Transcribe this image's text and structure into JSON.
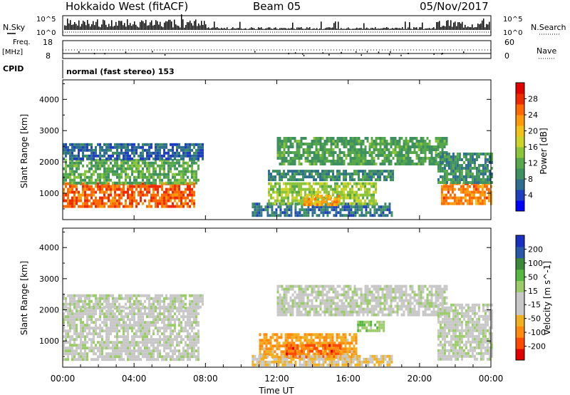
{
  "header": {
    "station": "Hokkaido West (fitACF)",
    "beam": "Beam 05",
    "date": "05/Nov/2017"
  },
  "status_panel": {
    "nsky_label": "N.Sky",
    "nsearch_label": "N.Search",
    "noise_ticks": [
      "10^5",
      "10^0"
    ],
    "freq_label_1": "Freq.",
    "freq_label_2": "[MHz]",
    "freq_ticks": [
      "18",
      "8"
    ],
    "nave_label": "Nave",
    "nave_ticks": [
      "60",
      "0"
    ],
    "cpid_label": "CPID",
    "cpid_value": "normal (fast stereo) 153"
  },
  "x_axis": {
    "label": "Time UT",
    "ticks": [
      "00:00",
      "04:00",
      "08:00",
      "12:00",
      "16:00",
      "20:00",
      "00:00"
    ]
  },
  "chart_data": [
    {
      "type": "heatmap",
      "panel": "power",
      "ylabel": "Slant Range [km]",
      "y_ticks": [
        1000,
        2000,
        3000,
        4000
      ],
      "ylim": [
        180,
        4600
      ],
      "xlim_hours": [
        0,
        24
      ],
      "colorbar_label": "Power [dB]",
      "colorbar_ticks": [
        "28",
        "24",
        "20",
        "16",
        "12",
        "8",
        "4"
      ],
      "colorbar_range": [
        0,
        32
      ],
      "colors": [
        "#0000ff",
        "#1f3fbf",
        "#2e6e8e",
        "#3f9060",
        "#56a84a",
        "#8cc43a",
        "#ccd42a",
        "#f2c21c",
        "#ff9a0a",
        "#ff6a00",
        "#ee2a00",
        "#e00000"
      ],
      "regions": [
        {
          "t0": 0.0,
          "t1": 7.4,
          "r0": 600,
          "r1": 1350,
          "value": 26
        },
        {
          "t0": 0.0,
          "t1": 7.6,
          "r0": 1350,
          "r1": 2100,
          "value": 12
        },
        {
          "t0": 0.0,
          "t1": 7.8,
          "r0": 2100,
          "r1": 2600,
          "value": 6
        },
        {
          "t0": 10.6,
          "t1": 18.5,
          "r0": 250,
          "r1": 700,
          "value": 7
        },
        {
          "t0": 11.5,
          "t1": 17.5,
          "r0": 650,
          "r1": 1350,
          "value": 15
        },
        {
          "t0": 13.5,
          "t1": 15.5,
          "r0": 600,
          "r1": 950,
          "value": 22
        },
        {
          "t0": 11.5,
          "t1": 18.5,
          "r0": 1400,
          "r1": 1750,
          "value": 9
        },
        {
          "t0": 12.0,
          "t1": 21.5,
          "r0": 1900,
          "r1": 2800,
          "value": 11
        },
        {
          "t0": 21.2,
          "t1": 24.0,
          "r0": 650,
          "r1": 1350,
          "value": 24
        },
        {
          "t0": 21.0,
          "t1": 24.0,
          "r0": 1350,
          "r1": 2300,
          "value": 9
        }
      ]
    },
    {
      "type": "heatmap",
      "panel": "velocity",
      "ylabel": "Slant Range [km]",
      "y_ticks": [
        1000,
        2000,
        3000,
        4000
      ],
      "ylim": [
        180,
        4600
      ],
      "xlim_hours": [
        0,
        24
      ],
      "colorbar_label": "Velocity [m s^-1]",
      "colorbar_ticks": [
        "200",
        "100",
        "50",
        "15",
        "-15",
        "-50",
        "-100",
        "-200"
      ],
      "colorbar_range": [
        -250,
        250
      ],
      "colors": [
        "#e00000",
        "#ff4a00",
        "#ff8a10",
        "#f0b020",
        "#c8c8c8",
        "#c8c8c8",
        "#9ccc6a",
        "#56b840",
        "#3a8a3a",
        "#2a58a8",
        "#1a30c0"
      ],
      "regions": [
        {
          "t0": 0.0,
          "t1": 7.6,
          "r0": 450,
          "r1": 2100,
          "value": 0
        },
        {
          "t0": 0.0,
          "t1": 7.8,
          "r0": 2100,
          "r1": 2500,
          "value": 5
        },
        {
          "t0": 11.0,
          "t1": 16.5,
          "r0": 450,
          "r1": 1250,
          "value": -110
        },
        {
          "t0": 12.5,
          "t1": 15.5,
          "r0": 500,
          "r1": 900,
          "value": -160
        },
        {
          "t0": 10.6,
          "t1": 18.5,
          "r0": 250,
          "r1": 550,
          "value": -60
        },
        {
          "t0": 12.0,
          "t1": 21.5,
          "r0": 1800,
          "r1": 2800,
          "value": 0
        },
        {
          "t0": 16.5,
          "t1": 18.0,
          "r0": 1300,
          "r1": 1650,
          "value": 60
        },
        {
          "t0": 21.0,
          "t1": 24.0,
          "r0": 450,
          "r1": 2200,
          "value": 0
        }
      ]
    }
  ]
}
